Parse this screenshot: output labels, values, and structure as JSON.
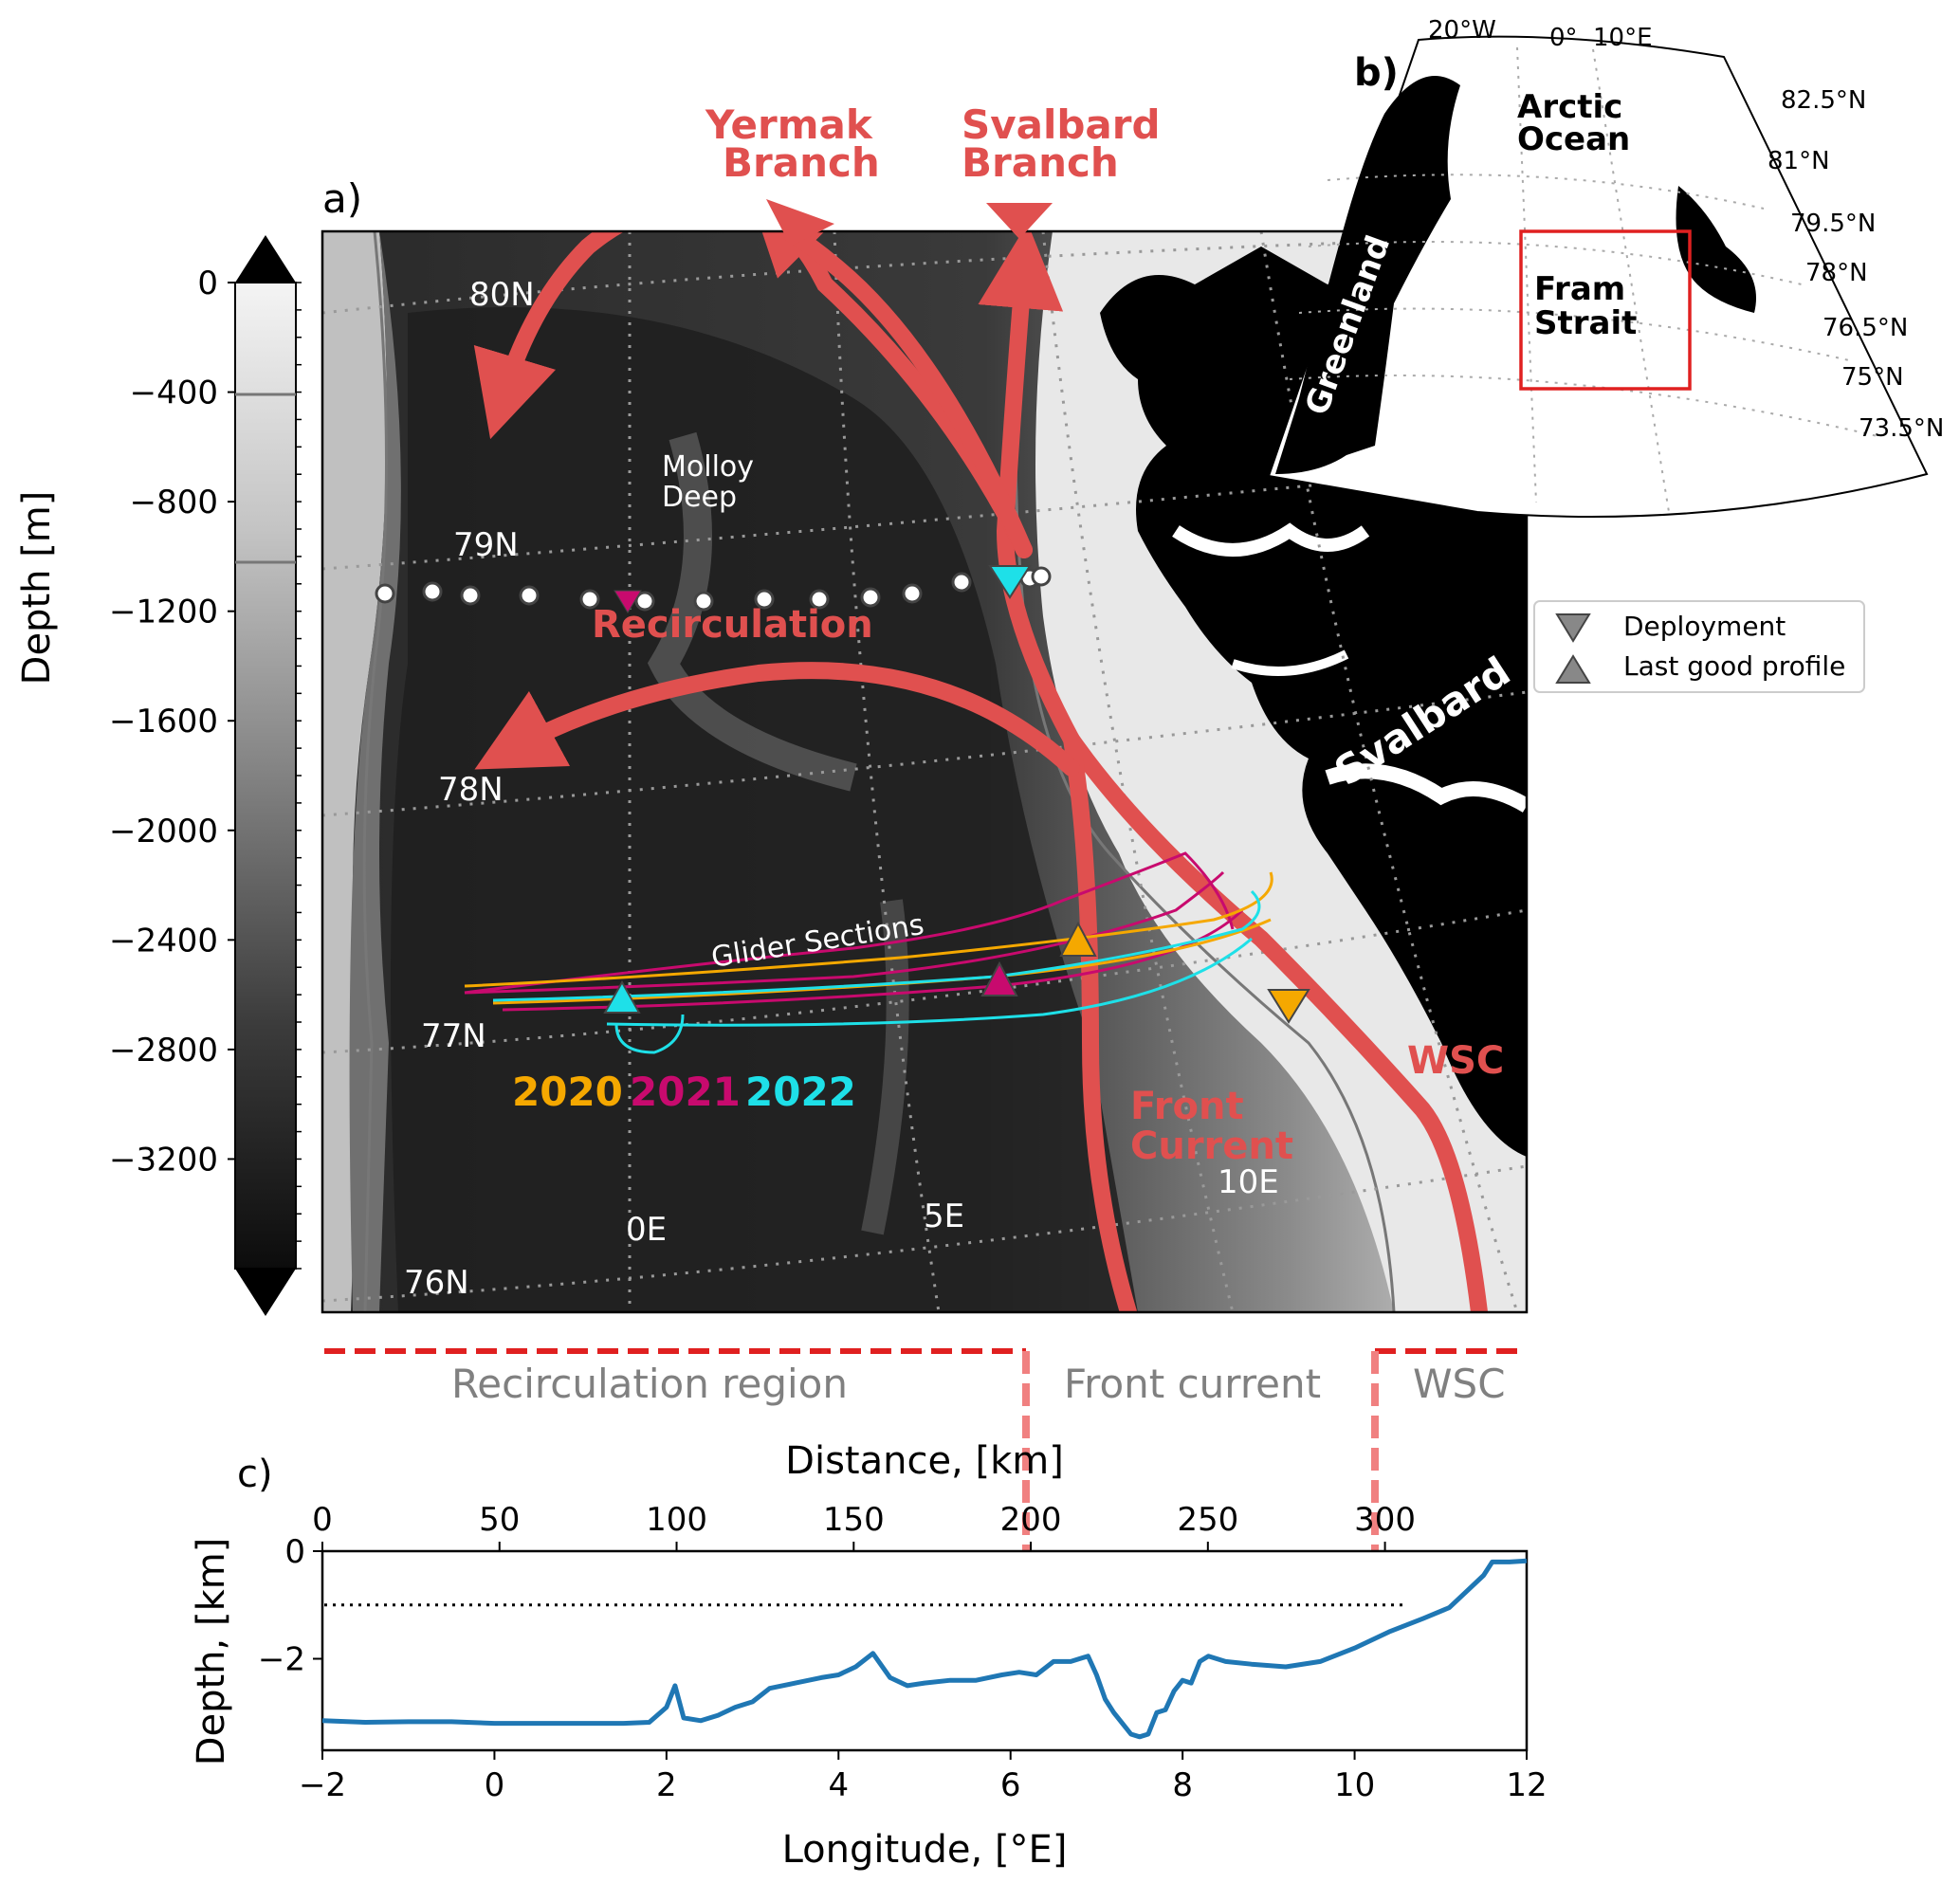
{
  "panel_labels": {
    "a": "a)",
    "b": "b)",
    "c": "c)"
  },
  "colorbar": {
    "label": "Depth [m]",
    "ticks": [
      "0",
      "−400",
      "−800",
      "−1200",
      "−1600",
      "−2000",
      "−2400",
      "−2800",
      "−3200"
    ],
    "range_m": [
      -3600,
      0
    ],
    "contour_lines_m": [
      -500,
      -1000
    ]
  },
  "map_a": {
    "lat_labels": [
      "80N",
      "79N",
      "78N",
      "77N",
      "76N"
    ],
    "lon_labels": [
      "0E",
      "5E",
      "10E"
    ],
    "current_labels": {
      "yermak": [
        "Yermak",
        "Branch"
      ],
      "svalbard": [
        "Svalbard",
        "Branch"
      ],
      "recirculation": "Recirculation",
      "front": [
        "Front",
        "Current"
      ],
      "wsc": "WSC"
    },
    "place_labels": {
      "molloy": [
        "Molloy",
        "Deep"
      ],
      "svalbard": "Svalbard",
      "glider_sections": "Glider Sections"
    },
    "years": [
      {
        "label": "2020",
        "color": "#f5a800"
      },
      {
        "label": "2021",
        "color": "#c80a6e"
      },
      {
        "label": "2022",
        "color": "#1ee0e8"
      }
    ],
    "current_color": "#e0504f"
  },
  "legend": {
    "deployment": "Deployment",
    "last_good": "Last good profile"
  },
  "inset_b": {
    "lon_labels": [
      "20°W",
      "0°",
      "10°E"
    ],
    "lat_labels": [
      "82.5°N",
      "81°N",
      "79.5°N",
      "78°N",
      "76.5°N",
      "75°N",
      "73.5°N"
    ],
    "place_labels": {
      "arctic": [
        "Arctic",
        "Ocean"
      ],
      "fram": [
        "Fram",
        "Strait"
      ],
      "greenland": "Greenland"
    },
    "box_color": "#e02020"
  },
  "regions": {
    "recirculation": "Recirculation region",
    "front": "Front current",
    "wsc": "WSC"
  },
  "chart_data": {
    "type": "line",
    "title": "",
    "xlabel": "Longitude, [°E]",
    "ylabel": "Depth, [km]",
    "top_xlabel": "Distance, [km]",
    "xlim": [
      -2,
      12
    ],
    "ylim": [
      -3.7,
      0
    ],
    "x_ticks": [
      "−2",
      "0",
      "2",
      "4",
      "6",
      "8",
      "10",
      "12"
    ],
    "y_ticks": [
      "0",
      "−2"
    ],
    "top_ticks": [
      "0",
      "50",
      "100",
      "150",
      "200",
      "250",
      "300"
    ],
    "reference_line_depth_km": -1.0,
    "series": [
      {
        "color": "#1f77b4",
        "x": [
          -2.0,
          -1.5,
          -1.0,
          -0.5,
          0.0,
          0.5,
          1.0,
          1.5,
          1.8,
          2.0,
          2.1,
          2.2,
          2.4,
          2.6,
          2.8,
          3.0,
          3.2,
          3.5,
          3.8,
          4.0,
          4.2,
          4.4,
          4.6,
          4.8,
          5.0,
          5.3,
          5.6,
          5.9,
          6.1,
          6.3,
          6.5,
          6.7,
          6.9,
          7.0,
          7.1,
          7.2,
          7.3,
          7.4,
          7.5,
          7.6,
          7.7,
          7.8,
          7.9,
          8.0,
          8.1,
          8.2,
          8.3,
          8.5,
          8.8,
          9.2,
          9.6,
          10.0,
          10.4,
          10.8,
          11.1,
          11.3,
          11.5,
          11.6,
          11.8,
          12.0
        ],
        "y": [
          -3.15,
          -3.18,
          -3.17,
          -3.17,
          -3.2,
          -3.2,
          -3.2,
          -3.2,
          -3.18,
          -2.9,
          -2.5,
          -3.1,
          -3.15,
          -3.05,
          -2.9,
          -2.8,
          -2.55,
          -2.45,
          -2.35,
          -2.3,
          -2.15,
          -1.9,
          -2.35,
          -2.5,
          -2.45,
          -2.4,
          -2.4,
          -2.3,
          -2.25,
          -2.3,
          -2.05,
          -2.05,
          -1.95,
          -2.3,
          -2.75,
          -3.0,
          -3.2,
          -3.4,
          -3.45,
          -3.4,
          -3.0,
          -2.95,
          -2.6,
          -2.4,
          -2.45,
          -2.05,
          -1.95,
          -2.05,
          -2.1,
          -2.15,
          -2.05,
          -1.8,
          -1.5,
          -1.25,
          -1.05,
          -0.75,
          -0.45,
          -0.2,
          -0.2,
          -0.18
        ]
      }
    ],
    "region_boundaries_distance_km": [
      203,
      303
    ],
    "distance_axis_max_km": 340
  }
}
